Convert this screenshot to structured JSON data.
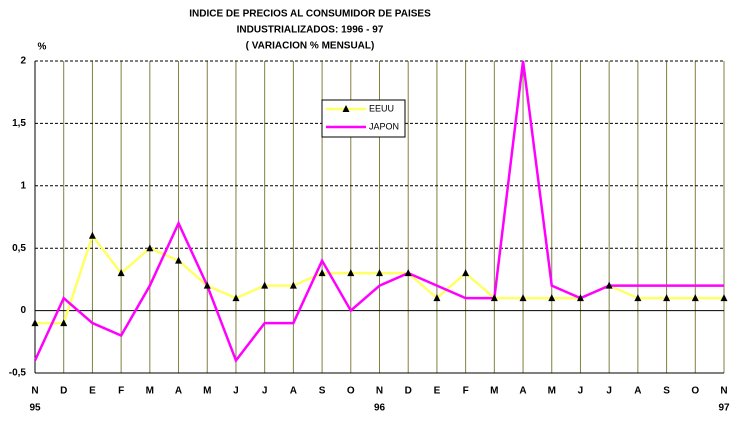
{
  "chart_data": {
    "type": "line",
    "title": [
      "INDICE DE PRECIOS AL CONSUMIDOR DE PAISES",
      "INDUSTRIALIZADOS: 1996 - 97",
      "( VARIACION % MENSUAL)"
    ],
    "y_label": "%",
    "categories": [
      "N",
      "D",
      "E",
      "F",
      "M",
      "A",
      "M",
      "J",
      "J",
      "A",
      "S",
      "O",
      "N",
      "D",
      "E",
      "F",
      "M",
      "A",
      "M",
      "J",
      "J",
      "A",
      "S",
      "O",
      "N"
    ],
    "year_labels": [
      "95",
      null,
      null,
      null,
      null,
      null,
      null,
      null,
      null,
      null,
      null,
      null,
      "96",
      null,
      null,
      null,
      null,
      null,
      null,
      null,
      null,
      null,
      null,
      null,
      "97"
    ],
    "series": [
      {
        "name": "EEUU",
        "color": "#ffff66",
        "marker_color": "#000000",
        "values": [
          -0.1,
          -0.1,
          0.6,
          0.3,
          0.5,
          0.4,
          0.2,
          0.1,
          0.2,
          0.2,
          0.3,
          0.3,
          0.3,
          0.3,
          0.1,
          0.3,
          0.1,
          0.1,
          0.1,
          0.1,
          0.2,
          0.1,
          0.1,
          0.1,
          0.1
        ]
      },
      {
        "name": "JAPON",
        "color": "#ff00ff",
        "values": [
          -0.4,
          0.1,
          -0.1,
          -0.2,
          0.2,
          0.7,
          0.2,
          -0.4,
          -0.1,
          -0.1,
          0.4,
          0.0,
          0.2,
          0.3,
          0.2,
          0.1,
          0.1,
          2.0,
          0.2,
          0.1,
          0.2,
          0.2,
          0.2,
          0.2,
          0.2
        ]
      }
    ],
    "ylim": [
      -0.5,
      2
    ],
    "yticks": [
      {
        "value": -0.5,
        "label": "-0,5"
      },
      0,
      {
        "value": 0.5,
        "label": "0,5"
      },
      1,
      {
        "value": 1.5,
        "label": "1,5"
      },
      2
    ],
    "grid": true,
    "legend": "upper-center"
  }
}
